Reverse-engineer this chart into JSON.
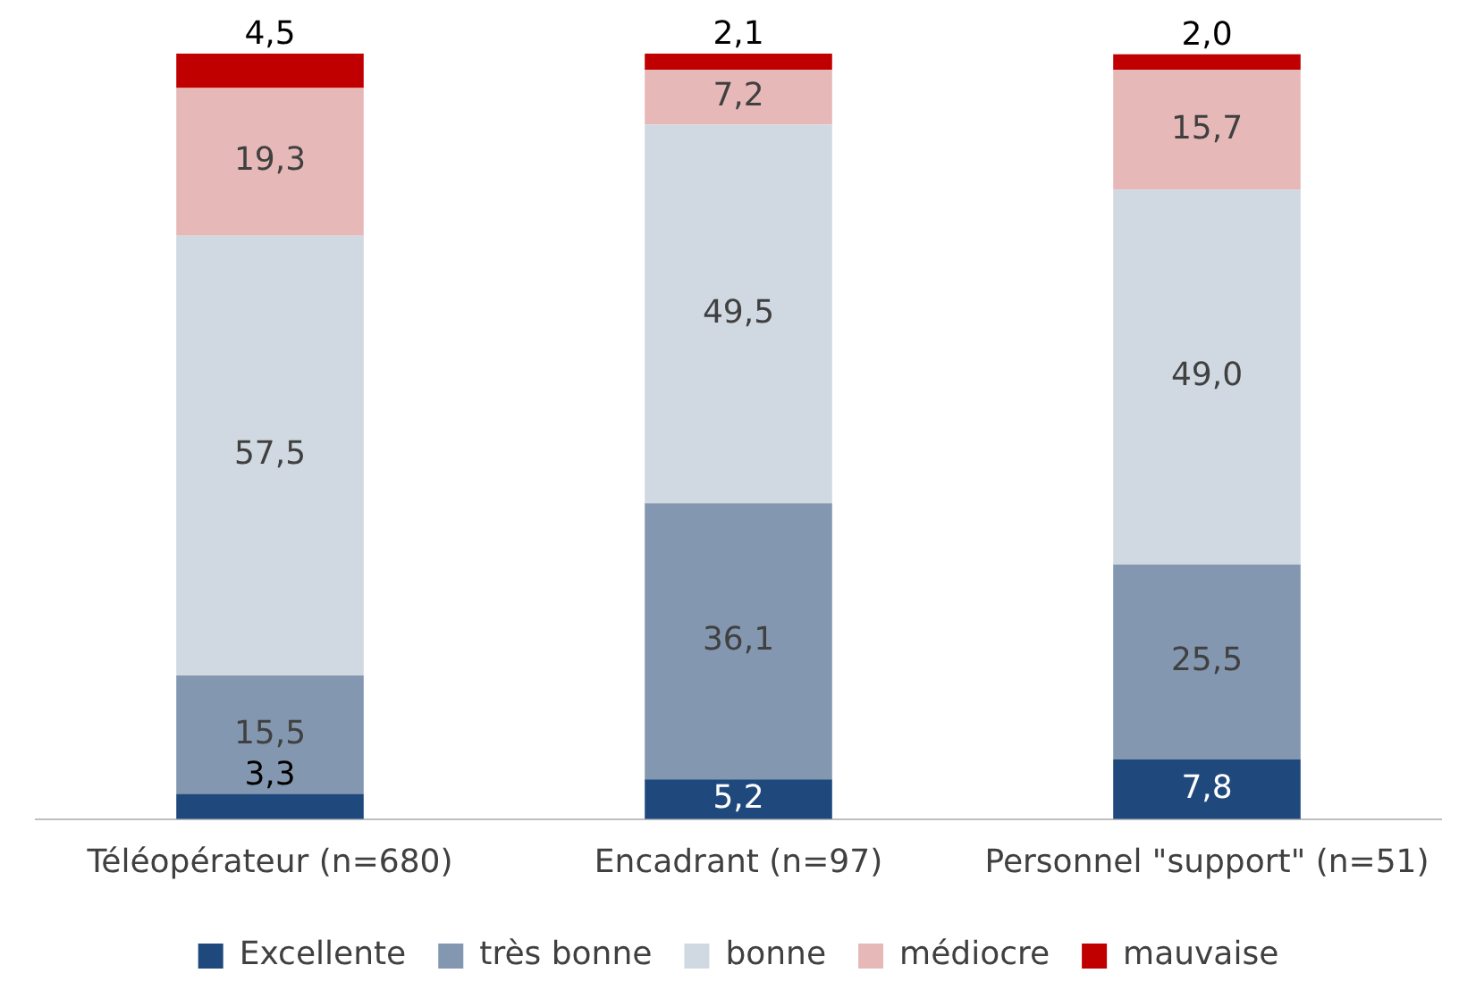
{
  "chart_data": {
    "type": "bar",
    "stacked": true,
    "categories": [
      "Téléopérateur (n=680)",
      "Encadrant (n=97)",
      "Personnel \"support\" (n=51)"
    ],
    "series": [
      {
        "name": "Excellente",
        "color": "#1f497d",
        "values": [
          3.3,
          5.2,
          7.8
        ],
        "value_labels": [
          "3,3",
          "5,2",
          "7,8"
        ]
      },
      {
        "name": "très bonne",
        "color": "#8497b0",
        "values": [
          15.5,
          36.1,
          25.5
        ],
        "value_labels": [
          "15,5",
          "36,1",
          "25,5"
        ]
      },
      {
        "name": "bonne",
        "color": "#d0d9e2",
        "values": [
          57.5,
          49.5,
          49.0
        ],
        "value_labels": [
          "57,5",
          "49,5",
          "49,0"
        ]
      },
      {
        "name": "médiocre",
        "color": "#e6b9b8",
        "values": [
          19.3,
          7.2,
          15.7
        ],
        "value_labels": [
          "19,3",
          "7,2",
          "15,7"
        ]
      },
      {
        "name": "mauvaise",
        "color": "#c00000",
        "values": [
          4.5,
          2.1,
          2.0
        ],
        "value_labels": [
          "4,5",
          "2,1",
          "2,0"
        ]
      }
    ],
    "grid": false,
    "legend": "bottom",
    "tick_labels": "x"
  }
}
